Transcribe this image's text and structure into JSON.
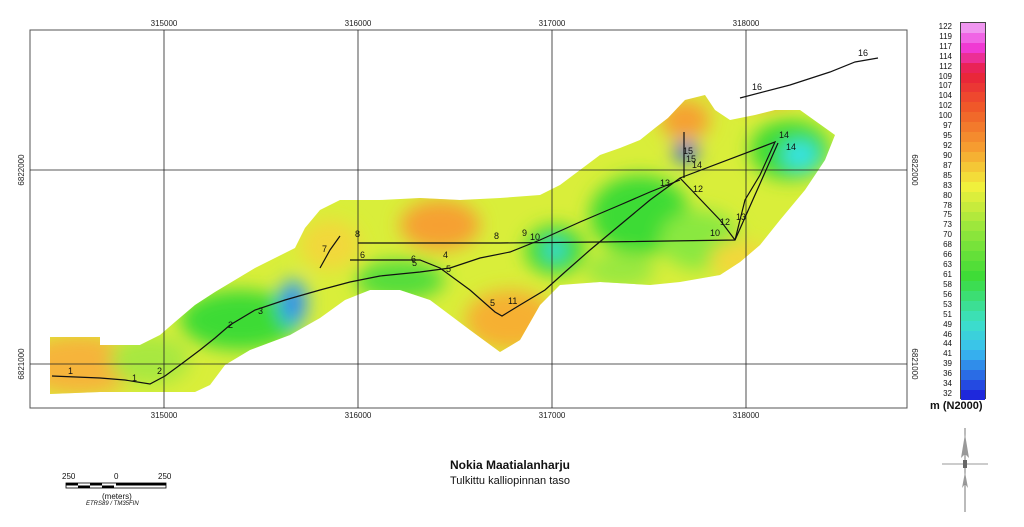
{
  "map": {
    "title": "Nokia Maatialanharju",
    "subtitle": "Tulkittu kalliopinnan taso",
    "x_ticks": [
      "315000",
      "316000",
      "317000",
      "318000"
    ],
    "y_ticks": [
      "6821000",
      "6822000"
    ],
    "line_labels": [
      "1",
      "1",
      "2",
      "2",
      "3",
      "4",
      "5",
      "5",
      "5",
      "6",
      "6",
      "7",
      "8",
      "8",
      "9",
      "10",
      "10",
      "11",
      "12",
      "12",
      "13",
      "13",
      "14",
      "14",
      "14",
      "15",
      "15",
      "16",
      "16"
    ],
    "colors": {
      "low": "#2a2fe0",
      "cyan": "#39e3e8",
      "green": "#3ddb35",
      "yellow": "#f2f23a",
      "orange": "#f6a030",
      "red": "#e8282a",
      "high": "#f03be0"
    }
  },
  "legend": {
    "values": [
      "122",
      "119",
      "117",
      "114",
      "112",
      "109",
      "107",
      "104",
      "102",
      "100",
      "97",
      "95",
      "92",
      "90",
      "87",
      "85",
      "83",
      "80",
      "78",
      "75",
      "73",
      "70",
      "68",
      "66",
      "63",
      "61",
      "58",
      "56",
      "53",
      "51",
      "49",
      "46",
      "44",
      "41",
      "39",
      "36",
      "34",
      "32"
    ],
    "unit": "m (N2000)"
  },
  "scale": {
    "labels": [
      "250",
      "0",
      "250"
    ],
    "unit": "(meters)",
    "crs": "ETRS89 / TM35FIN"
  }
}
